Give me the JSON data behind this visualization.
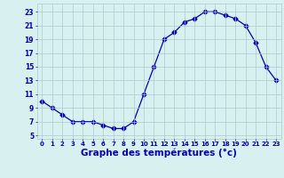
{
  "hours": [
    0,
    1,
    2,
    3,
    4,
    5,
    6,
    7,
    8,
    9,
    10,
    11,
    12,
    13,
    14,
    15,
    16,
    17,
    18,
    19,
    20,
    21,
    22,
    23
  ],
  "temps": [
    10,
    9,
    8,
    7,
    7,
    7,
    6.5,
    6,
    6,
    7,
    11,
    15,
    19,
    20,
    21.5,
    22,
    23,
    23,
    22.5,
    22,
    21,
    18.5,
    15,
    13
  ],
  "line_color": "#0000bb",
  "marker": "D",
  "marker_size": 2.5,
  "bg_color": "#d8f0f0",
  "grid_color": "#aacccc",
  "xlabel": "Graphe des températures (°c)",
  "ylabel_ticks": [
    5,
    7,
    9,
    11,
    13,
    15,
    17,
    19,
    21,
    23
  ],
  "xlim": [
    -0.5,
    23.5
  ],
  "ylim": [
    4.5,
    24.2
  ],
  "tick_color": "#0000bb",
  "xlabel_fontsize": 7.5,
  "tick_fontsize_x": 5.0,
  "tick_fontsize_y": 5.5
}
